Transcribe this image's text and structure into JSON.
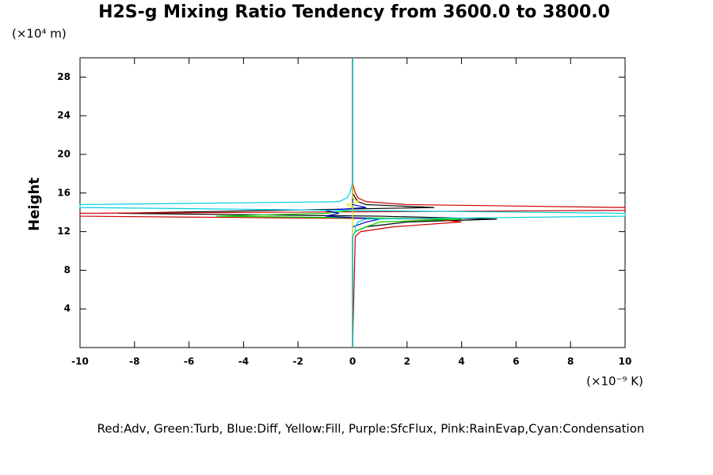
{
  "chart_data": {
    "type": "line",
    "title": "H2S-g Mixing Ratio Tendency from 3600.0 to 3800.0",
    "y_label": "Height",
    "y_unit": "(×10⁴ m)",
    "x_unit": "(×10⁻⁹ K)",
    "annotation": "Red:Adv, Green:Turb, Blue:Diff, Yellow:Fill, Purple:SfcFlux, Pink:RainEvap,Cyan:Condensation",
    "xlim": [
      -10,
      10
    ],
    "ylim": [
      0,
      30
    ],
    "xticks": [
      -10,
      -8,
      -6,
      -4,
      -2,
      0,
      2,
      4,
      6,
      8,
      10
    ],
    "yticks": [
      4,
      8,
      12,
      16,
      20,
      24,
      28
    ],
    "y": [
      0,
      11.5,
      12,
      12.5,
      13,
      13.3,
      13.6,
      13.9,
      14.2,
      14.5,
      14.8,
      15.1,
      15.5,
      16,
      17,
      30
    ],
    "series": [
      {
        "color": "#000000",
        "values": [
          0,
          0,
          0.1,
          0.5,
          2,
          5.3,
          1,
          -8.6,
          -3,
          3,
          0.5,
          0.2,
          0.1,
          0,
          0,
          0
        ]
      },
      {
        "color": "#cc0000",
        "values": [
          0,
          0.1,
          0.3,
          1.5,
          4,
          3,
          -10,
          -10,
          10,
          10,
          2,
          0.5,
          0.2,
          0.1,
          0,
          0
        ]
      },
      {
        "color": "#00cc00",
        "values": [
          0,
          0,
          0.1,
          0.5,
          1,
          4,
          -5,
          -1,
          0,
          0,
          0,
          0,
          0,
          0,
          0,
          0
        ]
      },
      {
        "color": "#0000cc",
        "values": [
          0,
          0,
          0,
          0,
          0.5,
          1,
          -1,
          -0.5,
          -1,
          0.5,
          0,
          0,
          0,
          0,
          0,
          0
        ]
      },
      {
        "color": "#e6e600",
        "values": [
          0,
          0,
          0,
          0,
          0,
          0,
          0,
          0,
          0,
          0,
          -0.2,
          0.2,
          0,
          0,
          0,
          0
        ]
      },
      {
        "color": "#00d0e0",
        "values": [
          0,
          0,
          0.1,
          0.1,
          0.2,
          0.5,
          10,
          10,
          -0.2,
          -10,
          -10,
          -0.5,
          -0.2,
          -0.1,
          0,
          0
        ]
      }
    ]
  }
}
